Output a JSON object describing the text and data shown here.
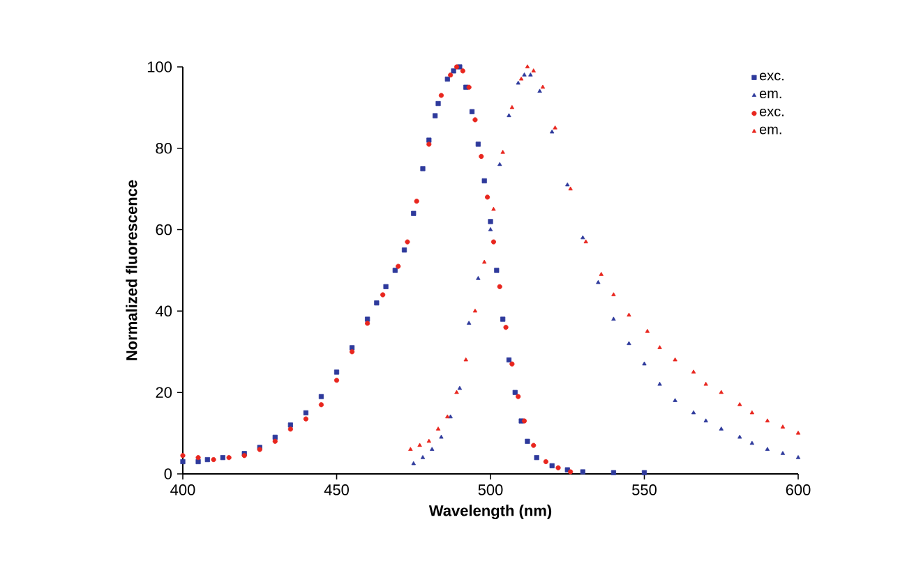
{
  "chart_data": {
    "type": "scatter",
    "xlabel": "Wavelength (nm)",
    "ylabel": "Normalized fluorescence",
    "xlim": [
      400,
      600
    ],
    "ylim": [
      0,
      100
    ],
    "xticks": [
      400,
      450,
      500,
      550,
      600
    ],
    "yticks": [
      0,
      20,
      40,
      60,
      80,
      100
    ],
    "legend": "top right",
    "series": [
      {
        "name": "exc.",
        "color": "#2e3a9c",
        "marker": "square",
        "x": [
          400,
          405,
          408,
          413,
          420,
          425,
          430,
          435,
          440,
          445,
          450,
          455,
          460,
          463,
          466,
          469,
          472,
          475,
          478,
          480,
          482,
          483,
          486,
          488,
          490,
          492,
          494,
          496,
          498,
          500,
          502,
          504,
          506,
          508,
          510,
          512,
          515,
          520,
          525,
          530,
          540,
          550
        ],
        "values": [
          3,
          3,
          3.5,
          4,
          5,
          6.5,
          9,
          12,
          15,
          19,
          25,
          31,
          38,
          42,
          46,
          50,
          55,
          64,
          75,
          82,
          88,
          91,
          97,
          99,
          100,
          95,
          89,
          81,
          72,
          62,
          50,
          38,
          28,
          20,
          13,
          8,
          4,
          2,
          1,
          0.5,
          0.3,
          0.3
        ]
      },
      {
        "name": "em.",
        "color": "#2e3a9c",
        "marker": "triangle",
        "x": [
          475,
          478,
          481,
          484,
          487,
          490,
          493,
          496,
          500,
          503,
          506,
          509,
          511,
          513,
          516,
          520,
          525,
          530,
          535,
          540,
          545,
          550,
          555,
          560,
          566,
          570,
          575,
          581,
          585,
          590,
          595,
          600
        ],
        "values": [
          2.5,
          4,
          6,
          9,
          14,
          21,
          37,
          48,
          60,
          76,
          88,
          96,
          98,
          98,
          94,
          84,
          71,
          58,
          47,
          38,
          32,
          27,
          22,
          18,
          15,
          13,
          11,
          9,
          7.5,
          6,
          5,
          4
        ]
      },
      {
        "name": "exc.",
        "color": "#e8261e",
        "marker": "circle",
        "x": [
          400,
          405,
          410,
          415,
          420,
          425,
          430,
          435,
          440,
          445,
          450,
          455,
          460,
          465,
          470,
          473,
          476,
          480,
          484,
          487,
          489,
          491,
          493,
          495,
          497,
          499,
          501,
          503,
          505,
          507,
          509,
          511,
          514,
          518,
          522,
          526
        ],
        "values": [
          4.5,
          4,
          3.5,
          4,
          4.5,
          6,
          8,
          11,
          13.5,
          17,
          23,
          30,
          37,
          44,
          51,
          57,
          67,
          81,
          93,
          98,
          100,
          99,
          95,
          87,
          78,
          68,
          57,
          46,
          36,
          27,
          19,
          13,
          7,
          3,
          1.5,
          0.5
        ]
      },
      {
        "name": "em.",
        "color": "#e8261e",
        "marker": "triangle",
        "x": [
          474,
          477,
          480,
          483,
          486,
          489,
          492,
          495,
          498,
          501,
          504,
          507,
          510,
          512,
          514,
          517,
          521,
          526,
          531,
          536,
          540,
          545,
          551,
          555,
          560,
          566,
          570,
          575,
          581,
          585,
          590,
          595,
          600
        ],
        "values": [
          6,
          7,
          8,
          11,
          14,
          20,
          28,
          40,
          52,
          65,
          79,
          90,
          97,
          100,
          99,
          95,
          85,
          70,
          57,
          49,
          44,
          39,
          35,
          31,
          28,
          25,
          22,
          20,
          17,
          15,
          13,
          11.5,
          10
        ]
      }
    ]
  }
}
